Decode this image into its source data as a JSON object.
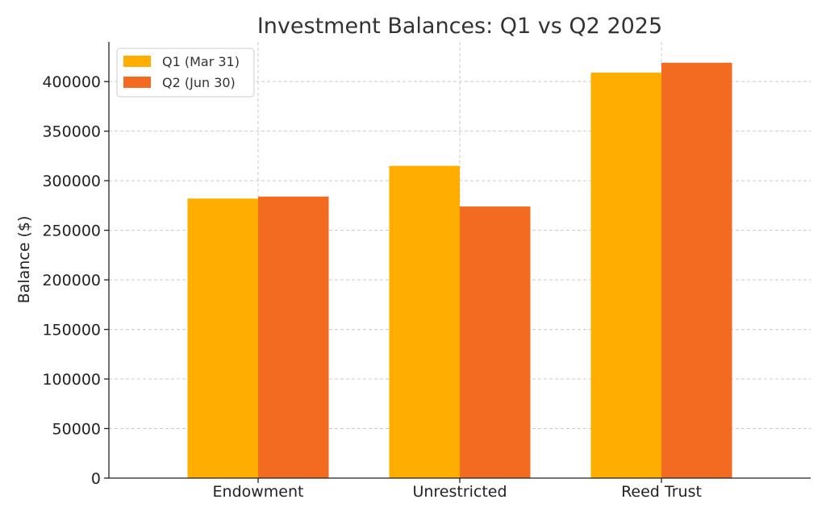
{
  "chart_data": {
    "type": "bar",
    "title": "Investment Balances: Q1 vs Q2 2025",
    "xlabel": "",
    "ylabel": "Balance ($)",
    "categories": [
      "Endowment",
      "Unrestricted",
      "Reed Trust"
    ],
    "series": [
      {
        "name": "Q1 (Mar 31)",
        "values": [
          282000,
          315000,
          409000
        ],
        "color": "#FFAE00"
      },
      {
        "name": "Q2 (Jun 30)",
        "values": [
          284000,
          274000,
          419000
        ],
        "color": "#F26B21"
      }
    ],
    "ylim": [
      0,
      440000
    ],
    "yticks": [
      0,
      50000,
      100000,
      150000,
      200000,
      250000,
      300000,
      350000,
      400000
    ],
    "ytick_labels": [
      "0",
      "50000",
      "100000",
      "150000",
      "200000",
      "250000",
      "300000",
      "350000",
      "400000"
    ],
    "grid": true,
    "legend_position": "top-left"
  }
}
